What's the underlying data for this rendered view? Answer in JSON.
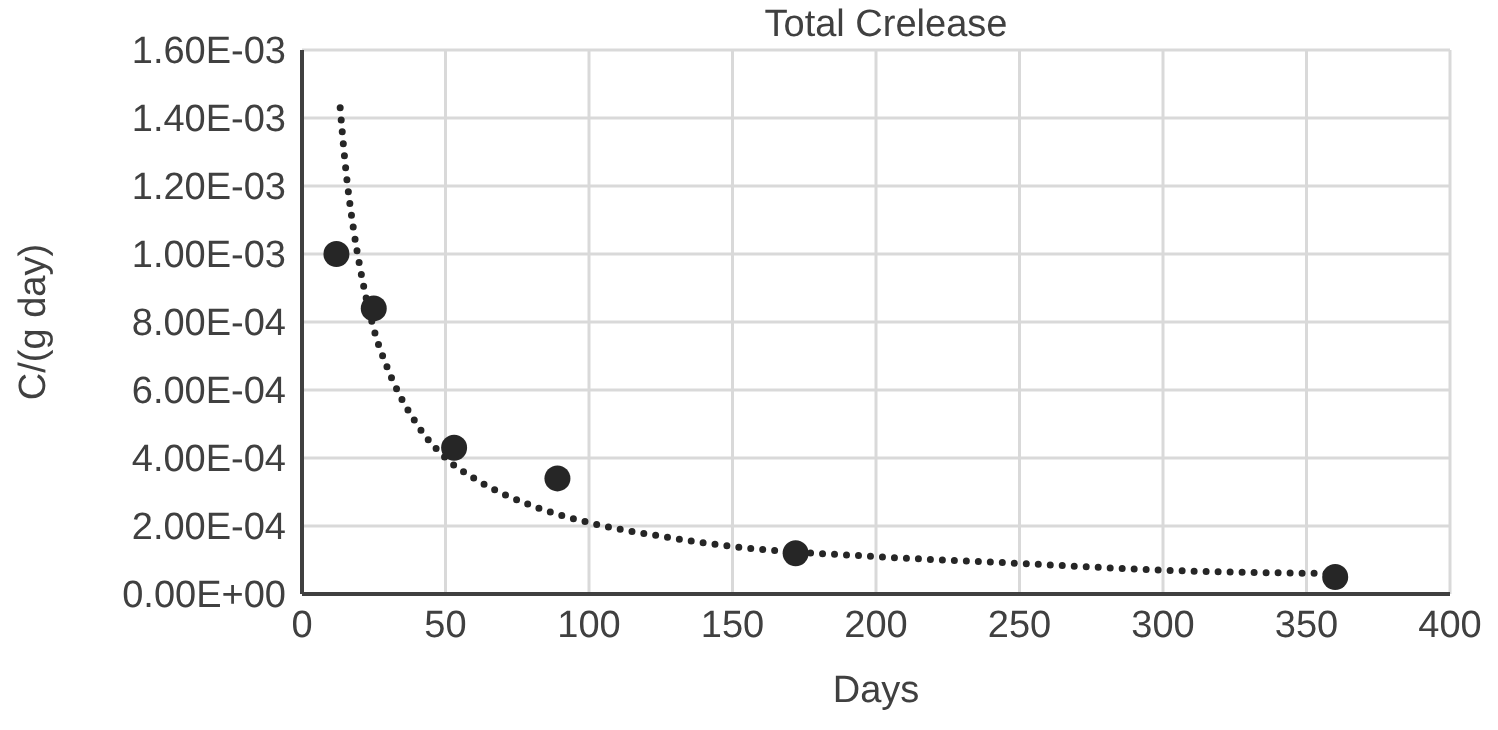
{
  "chart_data": {
    "type": "scatter",
    "title": "Total Crelease",
    "xlabel": "Days",
    "ylabel": "C/(g day)",
    "xlim": [
      0,
      400
    ],
    "xticks": [
      0,
      50,
      100,
      150,
      200,
      250,
      300,
      350,
      400
    ],
    "ylim": [
      0,
      0.0016
    ],
    "yticks": [
      {
        "value": 0,
        "label": "0.00E+00"
      },
      {
        "value": 0.0002,
        "label": "2.00E-04"
      },
      {
        "value": 0.0004,
        "label": "4.00E-04"
      },
      {
        "value": 0.0006,
        "label": "6.00E-04"
      },
      {
        "value": 0.0008,
        "label": "8.00E-04"
      },
      {
        "value": 0.001,
        "label": "1.00E-03"
      },
      {
        "value": 0.0012,
        "label": "1.20E-03"
      },
      {
        "value": 0.0014,
        "label": "1.40E-03"
      },
      {
        "value": 0.0016,
        "label": "1.60E-03"
      }
    ],
    "grid": true,
    "legend": false,
    "series": [
      {
        "color": "#262626",
        "marker": "circle",
        "x": [
          12,
          25,
          53,
          89,
          172,
          360
        ],
        "values": [
          0.001,
          0.00084,
          0.00043,
          0.00034,
          0.00012,
          5e-05
        ]
      },
      {
        "type": "line",
        "color": "#262626",
        "marker": "none",
        "line_style": "dotted",
        "x": [
          13.3,
          15,
          18,
          20,
          25,
          30,
          40,
          50,
          60,
          80,
          100,
          125,
          150,
          200,
          250,
          300,
          360
        ],
        "values": [
          0.00143,
          0.00127,
          0.00107,
          0.00097,
          0.00078,
          0.00066,
          0.0005,
          0.0004,
          0.00034,
          0.00026,
          0.00021,
          0.00017,
          0.00014,
          0.00011,
          9e-05,
          7e-05,
          6e-05
        ]
      }
    ]
  }
}
